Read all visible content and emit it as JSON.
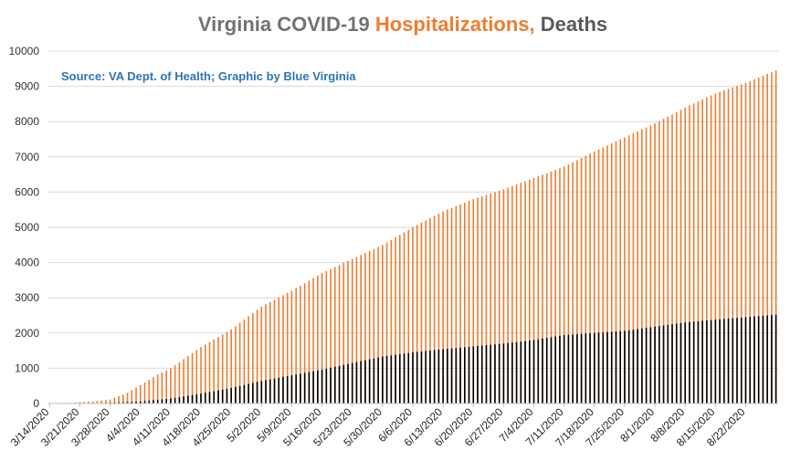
{
  "chart_data": {
    "type": "bar",
    "title_parts": [
      {
        "text": "Virginia COVID-19 ",
        "color": "#767171"
      },
      {
        "text": "Hospitalizations,",
        "color": "#ED7D31"
      },
      {
        "text": " Deaths",
        "color": "#595959"
      }
    ],
    "source": "Source: VA Dept. of Health; Graphic by Blue Virginia",
    "ylim": [
      0,
      10000
    ],
    "y_ticks": [
      "0",
      "1000",
      "2000",
      "3000",
      "4000",
      "5000",
      "6000",
      "7000",
      "8000",
      "9000",
      "10000"
    ],
    "x_tick_labels": [
      "3/14/2020",
      "3/21/2020",
      "3/28/2020",
      "4/4/2020",
      "4/11/2020",
      "4/18/2020",
      "4/25/2020",
      "5/2/2020",
      "5/9/2020",
      "5/16/2020",
      "5/23/2020",
      "5/30/2020",
      "6/6/2020",
      "6/13/2020",
      "6/20/2020",
      "6/27/2020",
      "7/4/2020",
      "7/11/2020",
      "7/18/2020",
      "7/25/2020",
      "8/1/2020",
      "8/8/2020",
      "8/15/2020",
      "8/22/2020"
    ],
    "first_date": "3/14/2020",
    "last_date": "8/29/2020",
    "grid": true,
    "legend": "none",
    "series": [
      {
        "name": "Hospitalizations",
        "color": "#ED7D31",
        "anchors": [
          {
            "date": "3/14/2020",
            "value": 0
          },
          {
            "date": "3/19/2020",
            "value": 20
          },
          {
            "date": "3/24/2020",
            "value": 60
          },
          {
            "date": "3/28/2020",
            "value": 110
          },
          {
            "date": "4/1/2020",
            "value": 300
          },
          {
            "date": "4/4/2020",
            "value": 520
          },
          {
            "date": "4/8/2020",
            "value": 820
          },
          {
            "date": "4/11/2020",
            "value": 1000
          },
          {
            "date": "4/18/2020",
            "value": 1600
          },
          {
            "date": "4/25/2020",
            "value": 2100
          },
          {
            "date": "5/2/2020",
            "value": 2750
          },
          {
            "date": "5/9/2020",
            "value": 3200
          },
          {
            "date": "5/16/2020",
            "value": 3700
          },
          {
            "date": "5/23/2020",
            "value": 4100
          },
          {
            "date": "5/30/2020",
            "value": 4500
          },
          {
            "date": "6/6/2020",
            "value": 5000
          },
          {
            "date": "6/13/2020",
            "value": 5450
          },
          {
            "date": "6/20/2020",
            "value": 5800
          },
          {
            "date": "6/27/2020",
            "value": 6080
          },
          {
            "date": "7/4/2020",
            "value": 6400
          },
          {
            "date": "7/11/2020",
            "value": 6720
          },
          {
            "date": "7/18/2020",
            "value": 7150
          },
          {
            "date": "7/25/2020",
            "value": 7550
          },
          {
            "date": "8/1/2020",
            "value": 7950
          },
          {
            "date": "8/8/2020",
            "value": 8400
          },
          {
            "date": "8/15/2020",
            "value": 8800
          },
          {
            "date": "8/22/2020",
            "value": 9100
          },
          {
            "date": "8/29/2020",
            "value": 9450
          }
        ]
      },
      {
        "name": "Deaths",
        "color": "#000000",
        "anchors": [
          {
            "date": "3/14/2020",
            "value": 0
          },
          {
            "date": "3/21/2020",
            "value": 2
          },
          {
            "date": "3/28/2020",
            "value": 20
          },
          {
            "date": "4/4/2020",
            "value": 60
          },
          {
            "date": "4/11/2020",
            "value": 140
          },
          {
            "date": "4/18/2020",
            "value": 280
          },
          {
            "date": "4/25/2020",
            "value": 440
          },
          {
            "date": "5/2/2020",
            "value": 640
          },
          {
            "date": "5/9/2020",
            "value": 800
          },
          {
            "date": "5/16/2020",
            "value": 960
          },
          {
            "date": "5/23/2020",
            "value": 1150
          },
          {
            "date": "5/30/2020",
            "value": 1330
          },
          {
            "date": "6/6/2020",
            "value": 1450
          },
          {
            "date": "6/13/2020",
            "value": 1540
          },
          {
            "date": "6/20/2020",
            "value": 1620
          },
          {
            "date": "6/27/2020",
            "value": 1700
          },
          {
            "date": "7/4/2020",
            "value": 1800
          },
          {
            "date": "7/11/2020",
            "value": 1940
          },
          {
            "date": "7/18/2020",
            "value": 2000
          },
          {
            "date": "7/25/2020",
            "value": 2060
          },
          {
            "date": "8/1/2020",
            "value": 2180
          },
          {
            "date": "8/8/2020",
            "value": 2300
          },
          {
            "date": "8/15/2020",
            "value": 2380
          },
          {
            "date": "8/22/2020",
            "value": 2450
          },
          {
            "date": "8/29/2020",
            "value": 2520
          }
        ]
      }
    ]
  }
}
